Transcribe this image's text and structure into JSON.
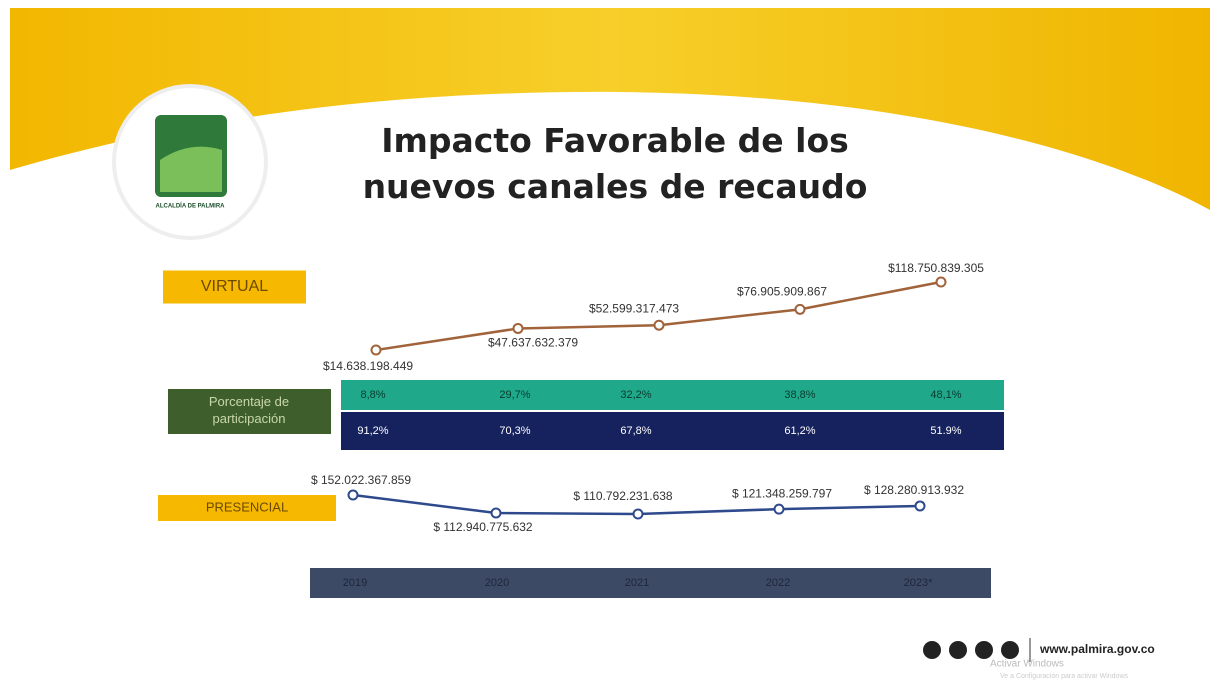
{
  "title": "Impacto Favorable de los nuevos canales de recaudo",
  "logo_text": "ALCALDÍA DE PALMIRA",
  "website": "www.palmira.gov.co",
  "watermark": [
    "Activar Windows",
    "Ve a Configuración para activar Windows"
  ],
  "chart_data": {
    "type": "line",
    "categories": [
      "2019",
      "2020",
      "2021",
      "2022",
      "2023*"
    ],
    "series": [
      {
        "name": "VIRTUAL",
        "color": "#a0633a",
        "values": [
          14638198449,
          47637632379,
          52599317473,
          76905909867,
          118750839305
        ],
        "value_labels": [
          "$14.638.198.449",
          "$47.637.632.379",
          "$52.599.317.473",
          "$76.905.909.867",
          "$118.750.839.305"
        ]
      },
      {
        "name": "PRESENCIAL",
        "color": "#2e4a8c",
        "values": [
          152022367859,
          112940775632,
          110792231638,
          121348259797,
          128280913932
        ],
        "value_labels": [
          "$ 152.022.367.859",
          "$ 112.940.775.632",
          "$ 110.792.231.638",
          "$ 121.348.259.797",
          "$ 128.280.913.932"
        ]
      }
    ]
  },
  "participation": {
    "label": "Porcentaje de participación",
    "virtual": [
      "8,8%",
      "29,7%",
      "32,2%",
      "38,8%",
      "48,1%"
    ],
    "presencial": [
      "91,2%",
      "70,3%",
      "67,8%",
      "61,2%",
      "51.9%"
    ]
  }
}
